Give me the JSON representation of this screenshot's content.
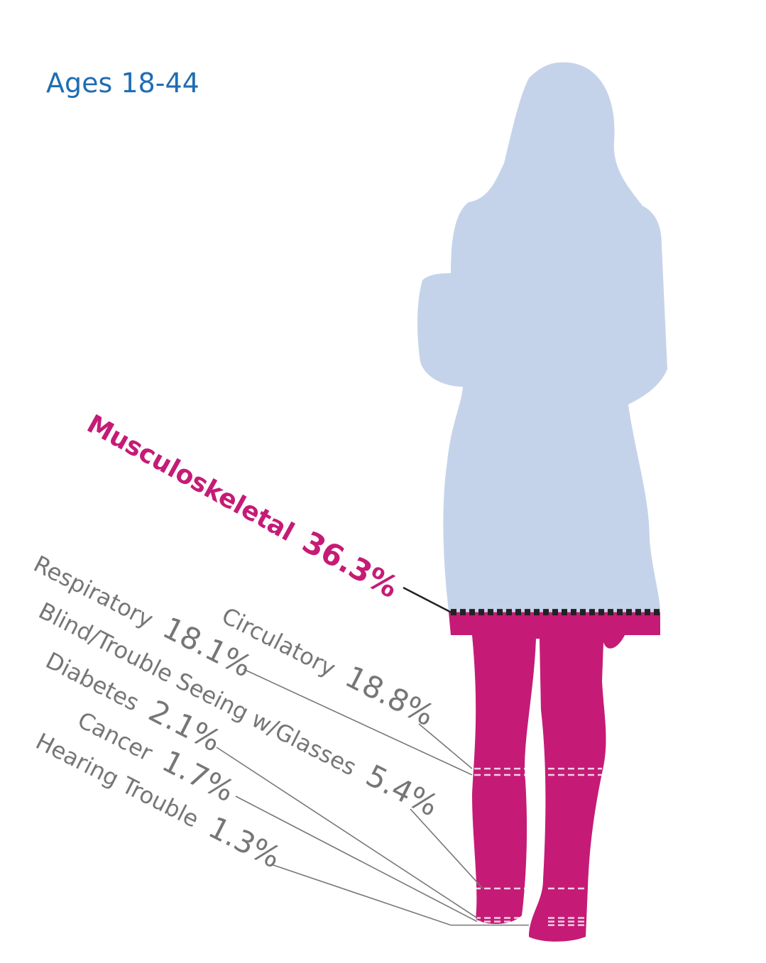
{
  "chart_data": {
    "type": "silhouette",
    "title": "Ages 18-44",
    "categories": [
      "Musculoskeletal",
      "Circulatory",
      "Respiratory",
      "Blind/Trouble Seeing w/Glasses",
      "Diabetes",
      "Cancer",
      "Hearing Trouble"
    ],
    "values": [
      36.3,
      18.8,
      18.1,
      5.4,
      2.1,
      1.7,
      1.3
    ],
    "value_labels": [
      "36.3%",
      "18.8%",
      "18.1%",
      "5.4%",
      "2.1%",
      "1.7%",
      "1.3%"
    ],
    "label_colors": [
      "#c51b76",
      "#767676",
      "#767676",
      "#767676",
      "#767676",
      "#767676",
      "#767676"
    ],
    "title_color": "#1f6db3",
    "body_color": "#c5d3ea",
    "fill_color": "#c51b76",
    "ylim": [
      0,
      100
    ]
  }
}
